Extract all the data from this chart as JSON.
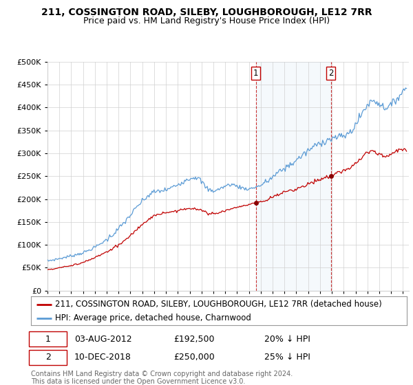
{
  "title": "211, COSSINGTON ROAD, SILEBY, LOUGHBOROUGH, LE12 7RR",
  "subtitle": "Price paid vs. HM Land Registry's House Price Index (HPI)",
  "ylim": [
    0,
    500000
  ],
  "yticks": [
    0,
    50000,
    100000,
    150000,
    200000,
    250000,
    300000,
    350000,
    400000,
    450000,
    500000
  ],
  "hpi_color": "#5b9bd5",
  "price_color": "#c00000",
  "marker_color": "#8b0000",
  "annotation_box_color": "#c00000",
  "vline_color": "#c00000",
  "shade_color": "#dbeaf7",
  "sale1_year": 2012.58,
  "sale1_price": 192500,
  "sale1_label": "1",
  "sale1_date": "03-AUG-2012",
  "sale1_pct": "20% ↓ HPI",
  "sale2_year": 2018.92,
  "sale2_price": 250000,
  "sale2_label": "2",
  "sale2_date": "10-DEC-2018",
  "sale2_pct": "25% ↓ HPI",
  "legend_line1": "211, COSSINGTON ROAD, SILEBY, LOUGHBOROUGH, LE12 7RR (detached house)",
  "legend_line2": "HPI: Average price, detached house, Charnwood",
  "footer": "Contains HM Land Registry data © Crown copyright and database right 2024.\nThis data is licensed under the Open Government Licence v3.0.",
  "title_fontsize": 10,
  "subtitle_fontsize": 9,
  "tick_fontsize": 8,
  "legend_fontsize": 8.5,
  "footer_fontsize": 7,
  "background_color": "#ffffff",
  "grid_color": "#d0d0d0",
  "xlim_start": 1995.0,
  "xlim_end": 2025.5
}
